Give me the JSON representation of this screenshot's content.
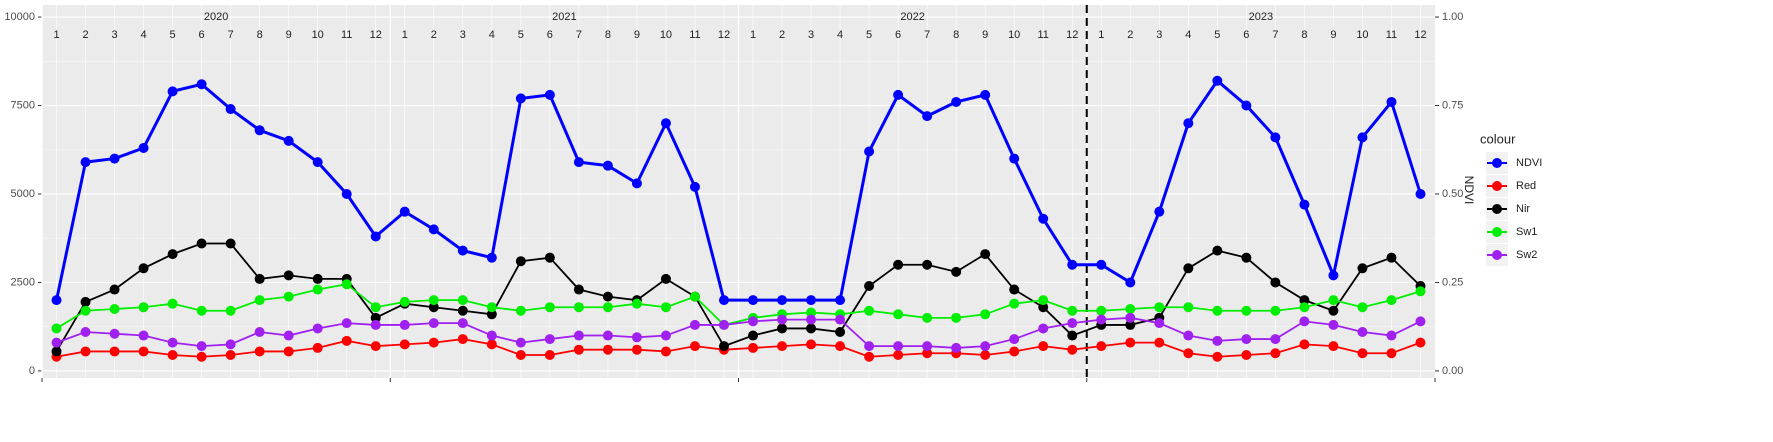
{
  "chart_data": {
    "type": "line",
    "year_labels": [
      "2020",
      "2021",
      "2022",
      "2023"
    ],
    "month_labels": [
      "1",
      "2",
      "3",
      "4",
      "5",
      "6",
      "7",
      "8",
      "9",
      "10",
      "11",
      "12"
    ],
    "x": [
      "2020-01",
      "2020-02",
      "2020-03",
      "2020-04",
      "2020-05",
      "2020-06",
      "2020-07",
      "2020-08",
      "2020-09",
      "2020-10",
      "2020-11",
      "2020-12",
      "2021-01",
      "2021-02",
      "2021-03",
      "2021-04",
      "2021-05",
      "2021-06",
      "2021-07",
      "2021-08",
      "2021-09",
      "2021-10",
      "2021-11",
      "2021-12",
      "2022-01",
      "2022-02",
      "2022-03",
      "2022-04",
      "2022-05",
      "2022-06",
      "2022-07",
      "2022-08",
      "2022-09",
      "2022-10",
      "2022-11",
      "2022-12",
      "2023-01",
      "2023-02",
      "2023-03",
      "2023-04",
      "2023-05",
      "2023-06",
      "2023-07",
      "2023-08",
      "2023-09",
      "2023-10",
      "2023-11",
      "2023-12"
    ],
    "vline_x": "2023-01",
    "ylim": [
      -200,
      10340
    ],
    "yticks": [
      0,
      2500,
      5000,
      7500,
      10000
    ],
    "y2lim": [
      -0.02,
      1.034
    ],
    "y2ticks": [
      {
        "value": 0,
        "label": "0.00"
      },
      {
        "value": 0.25,
        "label": "0.25"
      },
      {
        "value": 0.5,
        "label": "0.50"
      },
      {
        "value": 0.75,
        "label": "0.75"
      },
      {
        "value": 1,
        "label": "1.00"
      }
    ],
    "y2_label": "NDVI",
    "legend_title": "colour",
    "legend_position": "right",
    "grid": true,
    "series": [
      {
        "name": "NDVI",
        "color": "#0000FF",
        "axis": "y2",
        "values": [
          0.2,
          0.59,
          0.6,
          0.63,
          0.79,
          0.81,
          0.74,
          0.68,
          0.65,
          0.59,
          0.5,
          0.38,
          0.45,
          0.4,
          0.34,
          0.32,
          0.77,
          0.78,
          0.59,
          0.58,
          0.53,
          0.7,
          0.52,
          0.2,
          0.2,
          0.2,
          0.2,
          0.2,
          0.62,
          0.78,
          0.72,
          0.76,
          0.78,
          0.6,
          0.43,
          0.3,
          0.3,
          0.25,
          0.45,
          0.7,
          0.82,
          0.75,
          0.66,
          0.47,
          0.27,
          0.66,
          0.76,
          0.5
        ]
      },
      {
        "name": "Red",
        "color": "#FF0000",
        "values": [
          400,
          550,
          550,
          550,
          450,
          400,
          450,
          550,
          550,
          650,
          850,
          700,
          750,
          800,
          900,
          750,
          450,
          450,
          600,
          600,
          600,
          550,
          700,
          600,
          650,
          700,
          750,
          700,
          400,
          450,
          500,
          500,
          450,
          550,
          700,
          600,
          700,
          800,
          800,
          500,
          400,
          450,
          500,
          750,
          700,
          500,
          500,
          800
        ]
      },
      {
        "name": "Nir",
        "color": "#000000",
        "values": [
          550,
          1950,
          2300,
          2900,
          3300,
          3600,
          3600,
          2600,
          2700,
          2600,
          2600,
          1500,
          1900,
          1800,
          1700,
          1600,
          3100,
          3200,
          2300,
          2100,
          2000,
          2600,
          2100,
          700,
          1000,
          1200,
          1200,
          1100,
          2400,
          3000,
          3000,
          2800,
          3300,
          2300,
          1800,
          1000,
          1300,
          1300,
          1500,
          2900,
          3400,
          3200,
          2500,
          2000,
          1700,
          2900,
          3200,
          2400
        ]
      },
      {
        "name": "Sw1",
        "color": "#00EE00",
        "values": [
          1200,
          1700,
          1750,
          1800,
          1900,
          1700,
          1700,
          2000,
          2100,
          2300,
          2450,
          1800,
          1950,
          2000,
          2000,
          1800,
          1700,
          1800,
          1800,
          1800,
          1900,
          1800,
          2100,
          1300,
          1500,
          1600,
          1650,
          1600,
          1700,
          1600,
          1500,
          1500,
          1600,
          1900,
          2000,
          1700,
          1700,
          1750,
          1800,
          1800,
          1700,
          1700,
          1700,
          1800,
          2000,
          1800,
          2000,
          2250
        ]
      },
      {
        "name": "Sw2",
        "color": "#A020F0",
        "values": [
          800,
          1100,
          1050,
          1000,
          800,
          700,
          750,
          1100,
          1000,
          1200,
          1350,
          1300,
          1300,
          1350,
          1350,
          1000,
          800,
          900,
          1000,
          1000,
          950,
          1000,
          1300,
          1300,
          1400,
          1450,
          1450,
          1450,
          700,
          700,
          700,
          650,
          700,
          900,
          1200,
          1350,
          1450,
          1500,
          1350,
          1000,
          850,
          900,
          900,
          1400,
          1300,
          1100,
          1000,
          1400
        ]
      }
    ]
  }
}
